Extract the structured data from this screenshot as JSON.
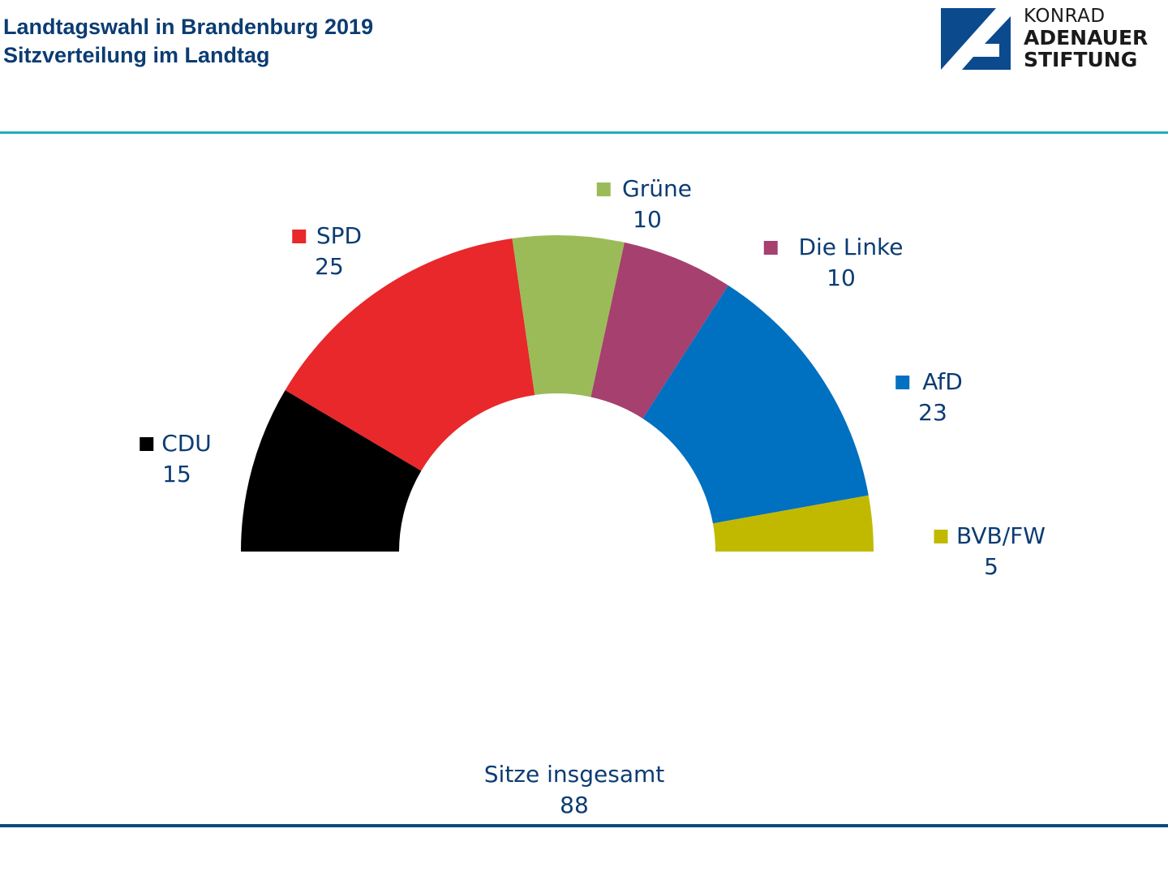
{
  "header": {
    "title_line1": "Landtagswahl in Brandenburg 2019",
    "title_line2": "Sitzverteilung im Landtag"
  },
  "logo": {
    "line1": "KONRAD",
    "line2": "ADENAUER",
    "line3": "STIFTUNG",
    "color": "#0b4a8c"
  },
  "colors": {
    "title": "#0b3c73",
    "top_rule": "#21aeb8",
    "bottom_rule": "#0b4a82"
  },
  "chart_data": {
    "type": "pie",
    "variant": "half-donut",
    "title": "Sitzverteilung im Landtag",
    "categories": [
      "CDU",
      "SPD",
      "Grüne",
      "Die Linke",
      "AfD",
      "BVB/FW"
    ],
    "values": [
      15,
      25,
      10,
      10,
      23,
      5
    ],
    "colors": [
      "#000000",
      "#e8282b",
      "#9bbb59",
      "#a5406f",
      "#0070c0",
      "#c1b900"
    ],
    "total_label": "Sitze insgesamt",
    "total": 88,
    "legend": "labels beside slices"
  }
}
